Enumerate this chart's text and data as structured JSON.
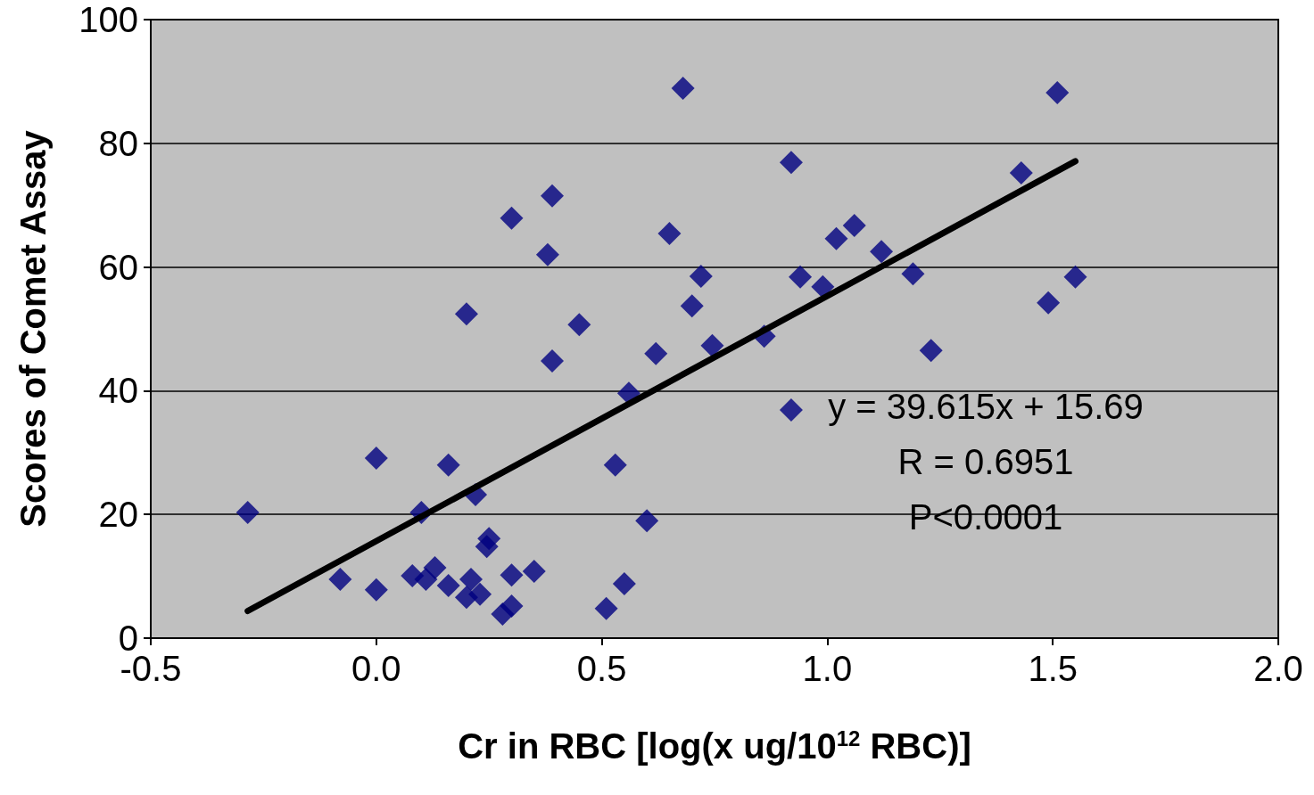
{
  "chart_data": {
    "type": "scatter",
    "xlabel": "Cr in RBC [log(x ug/10$^{12}$ RBC)]",
    "ylabel": "Scores of Comet Assay",
    "xlim": [
      -0.5,
      2.0
    ],
    "xticks": [
      {
        "value": -0.5,
        "label": "-0.5"
      },
      {
        "value": 0,
        "label": "0.0"
      },
      {
        "value": 0.5,
        "label": "0.5"
      },
      {
        "value": 1,
        "label": "1.0"
      },
      {
        "value": 1.5,
        "label": "1.5"
      },
      {
        "value": 2,
        "label": "2.0"
      }
    ],
    "ylim": [
      0,
      100
    ],
    "yticks": [
      0,
      20,
      40,
      60,
      80,
      100
    ],
    "grid": "y",
    "marker": "diamond",
    "annotations": [
      "y = 39.615x + 15.69",
      "R = 0.6951",
      "P<0.0001"
    ],
    "series": [
      {
        "color": "#000080",
        "x": [
          -0.285,
          -0.08,
          0.0,
          0.0,
          0.08,
          0.1,
          0.11,
          0.13,
          0.16,
          0.16,
          0.2,
          0.2,
          0.21,
          0.22,
          0.23,
          0.245,
          0.25,
          0.28,
          0.3,
          0.3,
          0.3,
          0.35,
          0.38,
          0.39,
          0.39,
          0.45,
          0.51,
          0.53,
          0.55,
          0.56,
          0.6,
          0.62,
          0.65,
          0.68,
          0.7,
          0.72,
          0.745,
          0.86,
          0.92,
          0.92,
          0.94,
          0.99,
          1.02,
          1.06,
          1.12,
          1.19,
          1.23,
          1.43,
          1.49,
          1.51,
          1.55
        ],
        "values": [
          20.3,
          9.5,
          29.1,
          7.8,
          10.1,
          20.3,
          9.5,
          11.4,
          28.0,
          8.5,
          52.4,
          6.6,
          9.5,
          23.2,
          7.1,
          14.8,
          16.1,
          3.9,
          5.2,
          67.9,
          10.2,
          10.8,
          62.0,
          71.5,
          44.8,
          50.7,
          4.8,
          28.0,
          8.8,
          39.6,
          19.0,
          46.0,
          65.4,
          88.9,
          53.7,
          58.5,
          47.3,
          48.8,
          36.9,
          76.9,
          58.4,
          56.8,
          64.6,
          66.7,
          62.5,
          58.9,
          46.5,
          75.2,
          54.2,
          88.2,
          58.4
        ]
      },
      {
        "type": "line",
        "color": "#000000",
        "marker": "none",
        "x": [
          -0.285,
          1.55
        ],
        "values": [
          4.4,
          77.1
        ]
      }
    ]
  }
}
